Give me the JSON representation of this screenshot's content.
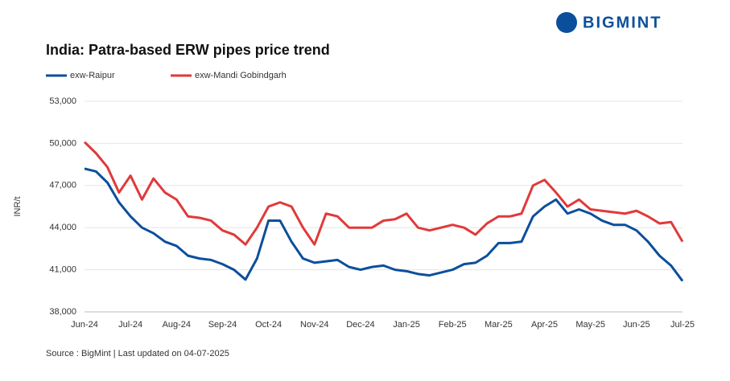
{
  "brand": "BIGMINT",
  "chart_data": {
    "type": "line",
    "title": "India: Patra-based ERW pipes price trend",
    "ylabel": "INR/t",
    "source": "Source : BigMint | Last updated on 04-07-2025",
    "categories": [
      "Jun-24",
      null,
      null,
      null,
      "Jul-24",
      null,
      null,
      null,
      "Aug-24",
      null,
      null,
      null,
      "Sep-24",
      null,
      null,
      null,
      "Oct-24",
      null,
      null,
      null,
      "Nov-24",
      null,
      null,
      null,
      "Dec-24",
      null,
      null,
      null,
      "Jan-25",
      null,
      null,
      null,
      "Feb-25",
      null,
      null,
      null,
      "Mar-25",
      null,
      null,
      null,
      "Apr-25",
      null,
      null,
      null,
      "May-25",
      null,
      null,
      null,
      "Jun-25",
      null,
      null,
      null,
      "Jul-25"
    ],
    "series": [
      {
        "name": "exw-Raipur",
        "color": "#0b4f9c",
        "values": [
          48200,
          48000,
          47200,
          45800,
          44800,
          44000,
          43600,
          43000,
          42700,
          42000,
          41800,
          41700,
          41400,
          41000,
          40300,
          41800,
          44500,
          44500,
          43000,
          41800,
          41500,
          41600,
          41700,
          41200,
          41000,
          41200,
          41300,
          41000,
          40900,
          40700,
          40600,
          40800,
          41000,
          41400,
          41500,
          42000,
          42900,
          42900,
          43000,
          44800,
          45500,
          46000,
          45000,
          45300,
          45000,
          44500,
          44200,
          44200,
          43800,
          43000,
          42000,
          41300,
          40200
        ]
      },
      {
        "name": "exw-Mandi Gobindgarh",
        "color": "#e03a3a",
        "values": [
          50100,
          49300,
          48300,
          46500,
          47700,
          46000,
          47500,
          46500,
          46000,
          44800,
          44700,
          44500,
          43800,
          43500,
          42800,
          44000,
          45500,
          45800,
          45500,
          44000,
          42800,
          45000,
          44800,
          44000,
          44000,
          44000,
          44500,
          44600,
          45000,
          44000,
          43800,
          44000,
          44200,
          44000,
          43500,
          44300,
          44800,
          44800,
          45000,
          47000,
          47400,
          46500,
          45500,
          46000,
          45300,
          45200,
          45100,
          45000,
          45200,
          44800,
          44300,
          44400,
          43000
        ]
      }
    ],
    "ylim": [
      38000,
      53000
    ],
    "yticks": [
      {
        "value": 38000,
        "label": "38,000"
      },
      {
        "value": 41000,
        "label": "41,000"
      },
      {
        "value": 44000,
        "label": "44,000"
      },
      {
        "value": 47000,
        "label": "47,000"
      },
      {
        "value": 50000,
        "label": "50,000"
      },
      {
        "value": 53000,
        "label": "53,000"
      }
    ],
    "grid": true
  }
}
